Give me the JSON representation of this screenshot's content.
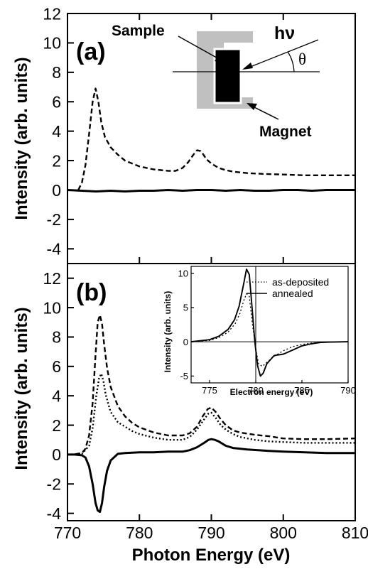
{
  "chart_data": [
    {
      "type": "line",
      "panel_label": "(a)",
      "ylabel": "Intensity (arb. units)",
      "xlim": [
        770,
        810
      ],
      "ylim": [
        -5,
        12
      ],
      "yticks": [
        -4,
        -2,
        0,
        2,
        4,
        6,
        8,
        10,
        12
      ],
      "series": [
        {
          "style": "dashed",
          "x": [
            770,
            771,
            771.5,
            772,
            772.5,
            773,
            773.5,
            773.9,
            774.3,
            774.7,
            775.2,
            776,
            777,
            778,
            779,
            780,
            781,
            782,
            783,
            784,
            785,
            786,
            786.8,
            787.5,
            788,
            788.5,
            788.9,
            789.3,
            790,
            791,
            792,
            793,
            795,
            797,
            800,
            803,
            806,
            810
          ],
          "y": [
            null,
            null,
            0,
            0.5,
            1.7,
            3.8,
            6.0,
            6.9,
            6.0,
            4.6,
            3.6,
            2.9,
            2.4,
            2.0,
            1.8,
            1.6,
            1.5,
            1.4,
            1.35,
            1.3,
            1.3,
            1.5,
            1.9,
            2.4,
            2.7,
            2.65,
            2.4,
            2.1,
            1.8,
            1.5,
            1.35,
            1.25,
            1.15,
            1.1,
            1.05,
            1.0,
            1.0,
            1.0
          ]
        },
        {
          "style": "solid",
          "x": [
            770,
            772,
            774,
            776,
            778,
            780,
            782,
            784,
            786,
            788,
            790,
            792,
            794,
            796,
            798,
            800,
            802,
            804,
            806,
            808,
            810
          ],
          "y": [
            0,
            -0.05,
            -0.1,
            -0.05,
            -0.1,
            -0.05,
            -0.05,
            0,
            -0.05,
            0,
            0,
            -0.05,
            0,
            -0.05,
            -0.05,
            0,
            0,
            -0.05,
            0,
            0,
            0
          ]
        }
      ],
      "schematic": {
        "sample_label": "Sample",
        "magnet_label": "Magnet",
        "photon_label": "hν",
        "angle_label": "θ",
        "colors": {
          "magnet": "#c0c0c0",
          "sample": "#000000"
        }
      }
    },
    {
      "type": "line",
      "panel_label": "(b)",
      "xlabel": "Photon Energy (eV)",
      "ylabel": "Intensity (arb. units)",
      "xlim": [
        770,
        810
      ],
      "ylim": [
        -4.5,
        13
      ],
      "yticks": [
        -4,
        -2,
        0,
        2,
        4,
        6,
        8,
        10,
        12
      ],
      "xticks": [
        770,
        780,
        790,
        800,
        810
      ],
      "series": [
        {
          "style": "dashed",
          "x": [
            770,
            771,
            772,
            772.5,
            773,
            773.5,
            773.9,
            774.2,
            774.5,
            774.8,
            775.1,
            775.5,
            776,
            777,
            778,
            779,
            780,
            782,
            784,
            786,
            787,
            788,
            788.8,
            789.5,
            790,
            790.6,
            791.3,
            792,
            793,
            794,
            796,
            798,
            800,
            803,
            806,
            810
          ],
          "y": [
            0,
            0.02,
            0.1,
            0.4,
            1.3,
            3.5,
            6.8,
            9.0,
            9.5,
            8.9,
            7.5,
            5.9,
            4.6,
            3.3,
            2.6,
            2.15,
            1.85,
            1.5,
            1.3,
            1.3,
            1.45,
            1.9,
            2.6,
            3.1,
            3.2,
            2.9,
            2.4,
            2.0,
            1.65,
            1.5,
            1.35,
            1.25,
            1.1,
            1.05,
            1.05,
            1.1
          ]
        },
        {
          "style": "dotted",
          "x": [
            770,
            771,
            772,
            773,
            773.5,
            774,
            774.4,
            774.7,
            775,
            775.3,
            775.7,
            776,
            777,
            778,
            779,
            780,
            782,
            784,
            786,
            787,
            788,
            789,
            789.6,
            790,
            790.6,
            791.3,
            792,
            793,
            794,
            796,
            798,
            800,
            803,
            806,
            810
          ],
          "y": [
            0,
            0.02,
            0.05,
            0.6,
            1.8,
            4.0,
            5.2,
            5.5,
            5.0,
            4.1,
            3.4,
            2.9,
            2.2,
            1.9,
            1.6,
            1.4,
            1.15,
            1.0,
            1.0,
            1.2,
            1.7,
            2.4,
            2.8,
            2.85,
            2.5,
            2.0,
            1.7,
            1.4,
            1.2,
            1.0,
            0.9,
            0.85,
            0.8,
            0.8,
            0.8
          ]
        },
        {
          "style": "solid",
          "x": [
            770,
            771,
            772,
            772.5,
            773,
            773.5,
            773.9,
            774.2,
            774.5,
            774.8,
            775.1,
            775.5,
            776,
            777,
            778,
            780,
            782,
            784,
            786,
            787,
            788,
            789,
            789.6,
            790,
            790.5,
            791,
            792,
            793,
            795,
            798,
            800,
            803,
            806,
            810
          ],
          "y": [
            0,
            0,
            -0.05,
            -0.2,
            -0.8,
            -2.0,
            -3.3,
            -3.8,
            -3.9,
            -3.3,
            -2.2,
            -1.1,
            -0.4,
            0.05,
            0.1,
            0.15,
            0.15,
            0.2,
            0.2,
            0.3,
            0.5,
            0.8,
            1.0,
            1.05,
            1.0,
            0.9,
            0.6,
            0.45,
            0.35,
            0.25,
            0.2,
            0.15,
            0.1,
            0.1
          ]
        }
      ],
      "inset": {
        "type": "line",
        "xlabel": "Electron energy (eV)",
        "ylabel": "Intensity (arb. units)",
        "xlim": [
          773,
          790
        ],
        "ylim": [
          -6,
          11
        ],
        "xticks": [
          775,
          780,
          785,
          790
        ],
        "yticks": [
          -5,
          0,
          5,
          10
        ],
        "series": [
          {
            "name": "as-deposited",
            "style": "dotted",
            "x": [
              773,
              775,
              776,
              777,
              777.8,
              778.3,
              778.7,
              779.0,
              779.3,
              779.6,
              780.0,
              780.3,
              780.7,
              781.2,
              782,
              783,
              784,
              785,
              786,
              787,
              788,
              790
            ],
            "y": [
              0,
              0.2,
              0.6,
              1.4,
              2.7,
              4.2,
              6.0,
              7.0,
              6.6,
              3.0,
              -1.0,
              -3.2,
              -3.6,
              -3.0,
              -2.1,
              -1.3,
              -0.7,
              -0.4,
              -0.2,
              -0.1,
              -0.05,
              0
            ]
          },
          {
            "name": "annealed",
            "style": "solid",
            "x": [
              773,
              775,
              776,
              777,
              777.7,
              778.2,
              778.7,
              779.0,
              779.3,
              779.6,
              779.9,
              780.2,
              780.5,
              780.8,
              781.2,
              782,
              783,
              784,
              785,
              786,
              787,
              788,
              790
            ],
            "y": [
              0,
              0.3,
              0.8,
              1.8,
              3.2,
              5.2,
              8.5,
              10.6,
              9.8,
              5.0,
              0.0,
              -3.5,
              -5.0,
              -4.6,
              -3.2,
              -2.0,
              -1.8,
              -1.2,
              -0.6,
              -0.3,
              -0.1,
              -0.05,
              0
            ]
          }
        ]
      }
    }
  ]
}
